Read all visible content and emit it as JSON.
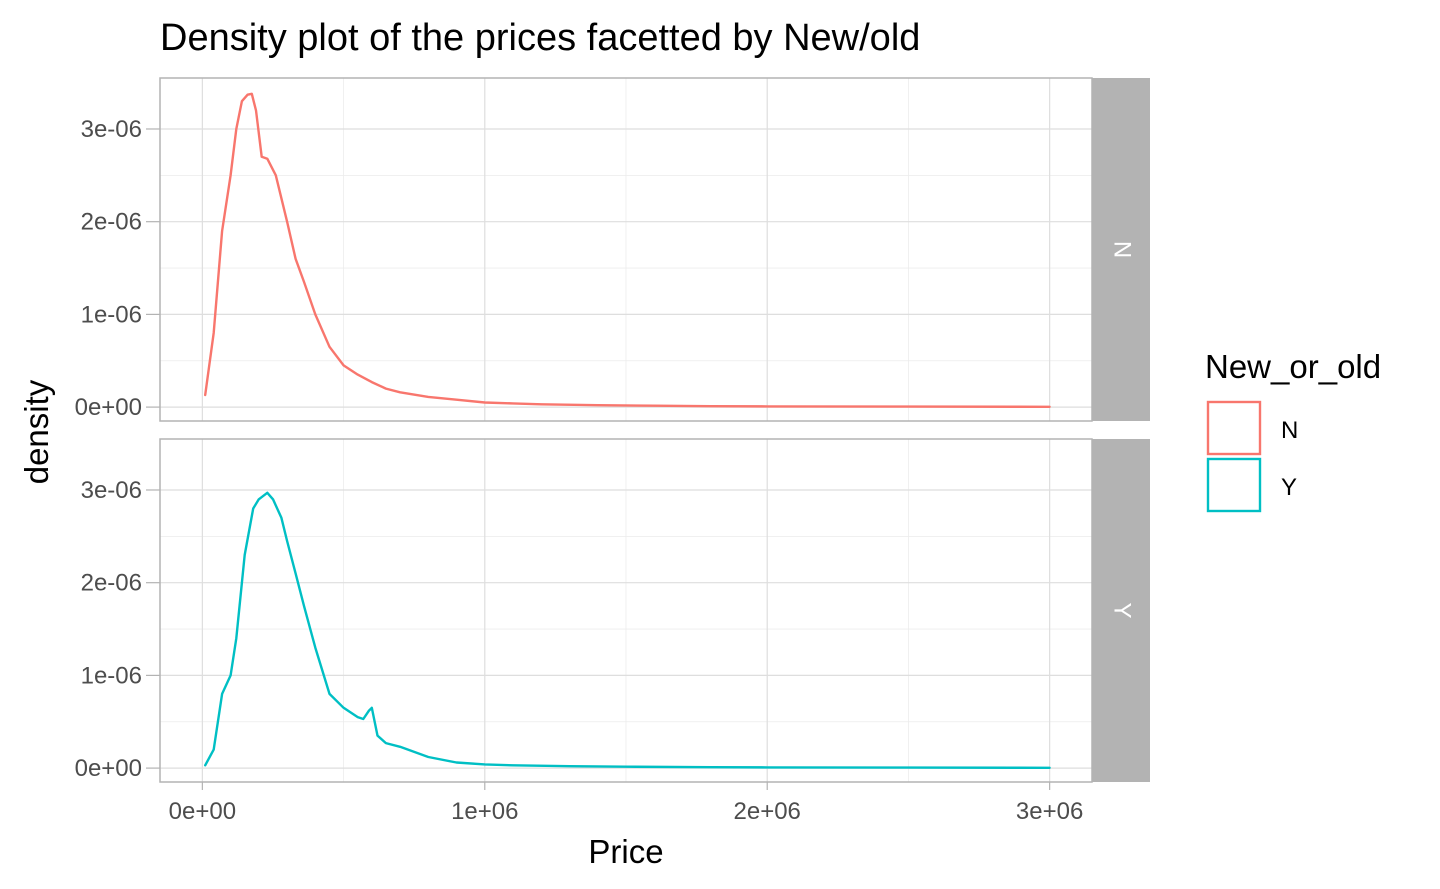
{
  "chart_data": {
    "type": "line",
    "title": "Density plot of the prices facetted by New/old",
    "xlabel": "Price",
    "ylabel": "density",
    "xlim": [
      -150000,
      3150000
    ],
    "ylim": [
      -1.5e-07,
      3.55e-06
    ],
    "x_ticks": [
      0,
      1000000,
      2000000,
      3000000
    ],
    "x_tick_labels": [
      "0e+00",
      "1e+06",
      "2e+06",
      "3e+06"
    ],
    "y_ticks": [
      0,
      1e-06,
      2e-06,
      3e-06
    ],
    "y_tick_labels": [
      "0e+00",
      "1e-06",
      "2e-06",
      "3e-06"
    ],
    "grid": true,
    "legend": {
      "title": "New_or_old",
      "position": "right",
      "entries": [
        {
          "label": "N",
          "color": "#F8766D"
        },
        {
          "label": "Y",
          "color": "#00BFC4"
        }
      ]
    },
    "facets": [
      {
        "label": "N",
        "color": "#F8766D",
        "x": [
          10000,
          40000,
          70000,
          100000,
          120000,
          140000,
          160000,
          175000,
          190000,
          210000,
          230000,
          260000,
          300000,
          330000,
          360000,
          400000,
          450000,
          500000,
          550000,
          600000,
          650000,
          700000,
          800000,
          900000,
          1000000,
          1100000,
          1200000,
          1400000,
          1600000,
          1800000,
          2000000,
          2500000,
          3000000
        ],
        "y": [
          1.3e-07,
          8e-07,
          1.9e-06,
          2.5e-06,
          3e-06,
          3.3e-06,
          3.37e-06,
          3.38e-06,
          3.2e-06,
          2.7e-06,
          2.68e-06,
          2.5e-06,
          2e-06,
          1.6e-06,
          1.35e-06,
          1e-06,
          6.5e-07,
          4.5e-07,
          3.5e-07,
          2.7e-07,
          2e-07,
          1.6e-07,
          1.1e-07,
          8e-08,
          5e-08,
          4e-08,
          3e-08,
          2e-08,
          1.5e-08,
          1e-08,
          8e-09,
          5e-09,
          3e-09
        ]
      },
      {
        "label": "Y",
        "color": "#00BFC4",
        "x": [
          10000,
          40000,
          70000,
          100000,
          120000,
          150000,
          180000,
          200000,
          230000,
          250000,
          280000,
          300000,
          330000,
          360000,
          400000,
          450000,
          500000,
          550000,
          570000,
          590000,
          600000,
          620000,
          650000,
          700000,
          800000,
          900000,
          1000000,
          1100000,
          1300000,
          1500000,
          1800000,
          2000000,
          2500000,
          3000000
        ],
        "y": [
          3e-08,
          2e-07,
          8e-07,
          1e-06,
          1.4e-06,
          2.3e-06,
          2.8e-06,
          2.9e-06,
          2.97e-06,
          2.9e-06,
          2.7e-06,
          2.45e-06,
          2.1e-06,
          1.75e-06,
          1.3e-06,
          8e-07,
          6.5e-07,
          5.5e-07,
          5.3e-07,
          6.2e-07,
          6.5e-07,
          3.5e-07,
          2.7e-07,
          2.3e-07,
          1.2e-07,
          6e-08,
          4e-08,
          3e-08,
          2e-08,
          1.5e-08,
          1e-08,
          8e-09,
          5e-09,
          3e-09
        ]
      }
    ]
  }
}
